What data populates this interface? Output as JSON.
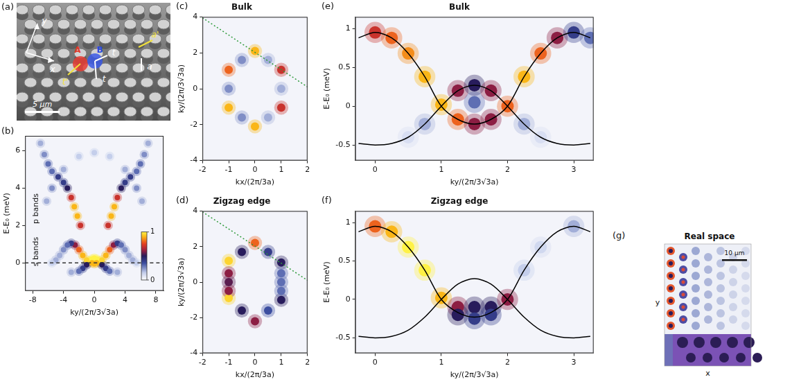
{
  "chart_data": [
    {
      "panel": "(b)",
      "type": "heatmap",
      "xlabel": "ky/(2π/3√3a)",
      "ylabel": "E-E₀ (meV)",
      "xlim": [
        -9,
        9
      ],
      "ylim": [
        -1.5,
        6.8
      ],
      "xticks": [
        -8,
        -4,
        0,
        4,
        8
      ],
      "yticks": [
        0,
        2,
        4,
        6
      ],
      "grid": false,
      "points": {
        "x": [
          -0.6,
          -0.3,
          0,
          0.3,
          0.6,
          -0.3,
          0,
          0.3,
          -1,
          1,
          -1.5,
          1.5,
          -2,
          2,
          -2.5,
          2.5,
          -3,
          3,
          -3.5,
          3.5,
          -4,
          4,
          -4.5,
          4.5,
          -5,
          5,
          -5.5,
          5.5,
          -1,
          1,
          -1.5,
          1.5,
          -2,
          2,
          -3,
          3,
          -1.8,
          1.8,
          -2.2,
          2.2,
          -2.6,
          2.6,
          -3,
          3,
          -3.5,
          3.5,
          -4,
          4,
          -4.7,
          4.7,
          -5.5,
          5.5,
          -6,
          6,
          -6.5,
          6.5,
          -7,
          7,
          -5.5,
          5.5,
          -6.2,
          6.2,
          -4,
          4,
          -2,
          2,
          0
        ],
        "y": [
          0.1,
          0.2,
          0.25,
          0.2,
          0.1,
          0,
          -0.05,
          0,
          0.15,
          0.15,
          0.4,
          0.4,
          0.7,
          0.7,
          0.95,
          0.95,
          1.05,
          1.05,
          0.95,
          0.95,
          0.7,
          0.7,
          0.4,
          0.4,
          0.15,
          0.15,
          0,
          0,
          -0.1,
          -0.1,
          -0.3,
          -0.3,
          -0.45,
          -0.45,
          -0.5,
          -0.5,
          2,
          2,
          2.5,
          2.5,
          3,
          3,
          3.5,
          3.5,
          4,
          4,
          4.3,
          4.3,
          4.6,
          4.6,
          4.9,
          4.9,
          5.3,
          5.3,
          5.8,
          5.8,
          6.4,
          6.4,
          4,
          4,
          3.3,
          3.3,
          5,
          5,
          5.7,
          5.7,
          5.9
        ],
        "intensity": [
          1,
          1,
          1,
          1,
          1,
          0.9,
          0.9,
          0.9,
          0.95,
          0.95,
          0.9,
          0.9,
          0.8,
          0.8,
          0.6,
          0.6,
          0.4,
          0.4,
          0.3,
          0.3,
          0.25,
          0.25,
          0.2,
          0.2,
          0.2,
          0.2,
          0.15,
          0.15,
          0.5,
          0.5,
          0.4,
          0.4,
          0.3,
          0.3,
          0.2,
          0.2,
          0.7,
          0.7,
          0.9,
          0.9,
          0.9,
          0.9,
          0.7,
          0.7,
          0.5,
          0.5,
          0.4,
          0.4,
          0.4,
          0.4,
          0.3,
          0.3,
          0.3,
          0.3,
          0.25,
          0.25,
          0.2,
          0.2,
          0.25,
          0.25,
          0.2,
          0.2,
          0.2,
          0.2,
          0.15,
          0.15,
          0.15
        ]
      },
      "colorbar": {
        "range": [
          0,
          1
        ],
        "ticks": [
          0,
          1
        ]
      },
      "annotations": [
        {
          "text": "p bands",
          "x": -7.6,
          "y": 2.9
        },
        {
          "text": "s bands",
          "x": -7.6,
          "y": 0.6
        }
      ],
      "series": [
        {
          "color": "#333333",
          "line_style": "dashed",
          "x": [
            -9,
            9
          ],
          "y": [
            0,
            0
          ]
        }
      ]
    },
    {
      "panel": "(c)",
      "type": "heatmap",
      "title": "Bulk",
      "xlabel": "kx/(2π/3a)",
      "ylabel": "ky/(2π/3√3a)",
      "xlim": [
        -2,
        2
      ],
      "ylim": [
        -4,
        4
      ],
      "xticks": [
        -2,
        -1,
        0,
        1,
        2
      ],
      "yticks": [
        -4,
        -2,
        0,
        2,
        4
      ],
      "grid": false,
      "points": {
        "x": [
          0,
          0,
          -1,
          1,
          -1,
          1,
          -0.5,
          0.5,
          -0.5,
          0.5,
          -1,
          1
        ],
        "y": [
          2.1,
          -2.1,
          1.05,
          1.05,
          -1.05,
          -1.05,
          1.6,
          1.6,
          -1.6,
          -1.6,
          0,
          0
        ],
        "intensity": [
          0.9,
          0.9,
          0.8,
          0.7,
          0.9,
          0.7,
          0.25,
          0.2,
          0.25,
          0.2,
          0.25,
          0.2
        ]
      },
      "series": [
        {
          "color": "#2e9a3a",
          "line_style": "dotted",
          "x": [
            -2,
            2
          ],
          "y": [
            3.95,
            0.1
          ]
        }
      ]
    },
    {
      "panel": "(d)",
      "type": "heatmap",
      "title": "Zigzag edge",
      "xlabel": "kx/(2π/3a)",
      "ylabel": "ky/(2π/3√3a)",
      "xlim": [
        -2,
        2
      ],
      "ylim": [
        -4,
        4
      ],
      "xticks": [
        -2,
        -1,
        0,
        1,
        2
      ],
      "yticks": [
        -4,
        -2,
        0,
        2,
        4
      ],
      "grid": false,
      "points": {
        "x": [
          -1,
          -1,
          0,
          0,
          1,
          1,
          -1,
          -1,
          -1,
          -0.5,
          0.5,
          -0.5,
          0.5,
          1,
          1,
          1
        ],
        "y": [
          1.2,
          -0.9,
          2.2,
          -2.2,
          1.1,
          -1,
          0.5,
          0,
          -0.5,
          1.7,
          1.7,
          -1.6,
          -1.6,
          0,
          0.5,
          -0.5
        ],
        "intensity": [
          0.95,
          0.95,
          0.8,
          0.6,
          0.5,
          0.5,
          0.6,
          0.55,
          0.6,
          0.5,
          0.4,
          0.5,
          0.35,
          0.3,
          0.3,
          0.3
        ]
      },
      "series": [
        {
          "color": "#2e9a3a",
          "line_style": "dotted",
          "x": [
            -2,
            2
          ],
          "y": [
            3.95,
            0.1
          ]
        }
      ]
    },
    {
      "panel": "(e)",
      "type": "heatmap",
      "title": "Bulk",
      "xlabel": "ky/(2π/3√3a)",
      "ylabel": "E-E₀ (meV)",
      "xlim": [
        -0.3,
        3.3
      ],
      "ylim": [
        -0.7,
        1.15
      ],
      "xticks": [
        0,
        1,
        2,
        3
      ],
      "yticks": [
        -0.5,
        0,
        0.5,
        1
      ],
      "grid": false,
      "points": {
        "x": [
          0,
          0.25,
          0.5,
          0.75,
          1,
          1.25,
          1.5,
          1.75,
          2,
          2.25,
          2.5,
          2.75,
          3,
          3.25,
          1.25,
          1.5,
          1.75,
          0.75,
          2.25,
          0.5,
          2.5,
          1.5
        ],
        "y": [
          0.95,
          0.88,
          0.68,
          0.38,
          0.02,
          -0.17,
          -0.23,
          -0.17,
          0,
          0.38,
          0.68,
          0.88,
          0.95,
          0.88,
          0.2,
          0.27,
          0.2,
          -0.23,
          -0.23,
          -0.4,
          -0.4,
          0.05
        ],
        "intensity": [
          0.7,
          0.8,
          0.85,
          0.9,
          0.9,
          0.8,
          0.6,
          0.6,
          0.8,
          0.9,
          0.8,
          0.6,
          0.4,
          0.3,
          0.6,
          0.5,
          0.6,
          0.2,
          0.2,
          0.1,
          0.1,
          0.3
        ]
      },
      "series": [
        {
          "color": "#000000",
          "line_style": "solid",
          "x": [
            -0.25,
            0,
            0.25,
            0.5,
            0.75,
            1,
            1.25,
            1.5,
            1.75,
            2,
            2.25,
            2.5,
            2.75,
            3,
            3.25
          ],
          "y": [
            0.88,
            0.95,
            0.88,
            0.68,
            0.38,
            0,
            -0.17,
            -0.23,
            -0.17,
            0,
            0.38,
            0.68,
            0.88,
            0.95,
            0.88
          ]
        },
        {
          "color": "#000000",
          "line_style": "solid",
          "x": [
            -0.25,
            0,
            0.25,
            0.5,
            0.75,
            1,
            1.25,
            1.5,
            1.75,
            2,
            2.25,
            2.5,
            2.75,
            3,
            3.25
          ],
          "y": [
            -0.48,
            -0.5,
            -0.48,
            -0.4,
            -0.23,
            0,
            0.2,
            0.27,
            0.2,
            0,
            -0.23,
            -0.4,
            -0.48,
            -0.5,
            -0.48
          ]
        }
      ]
    },
    {
      "panel": "(f)",
      "type": "heatmap",
      "title": "Zigzag edge",
      "xlabel": "ky/(2π/3√3a)",
      "ylabel": "E-E₀ (meV)",
      "xlim": [
        -0.3,
        3.3
      ],
      "ylim": [
        -0.7,
        1.15
      ],
      "xticks": [
        0,
        1,
        2,
        3
      ],
      "yticks": [
        -0.5,
        0,
        0.5,
        1
      ],
      "grid": false,
      "points": {
        "x": [
          0,
          0.25,
          0.5,
          0.75,
          1,
          1.25,
          1.5,
          1.75,
          2,
          1.25,
          1.5,
          1.75,
          2.25,
          2.5,
          3
        ],
        "y": [
          0.95,
          0.88,
          0.68,
          0.38,
          0.02,
          -0.1,
          -0.1,
          -0.1,
          0,
          -0.2,
          -0.25,
          -0.2,
          0.38,
          0.68,
          0.95
        ],
        "intensity": [
          0.8,
          0.9,
          1,
          1,
          0.9,
          0.6,
          0.5,
          0.5,
          0.6,
          0.5,
          0.4,
          0.4,
          0.15,
          0.12,
          0.2
        ]
      },
      "series": [
        {
          "color": "#000000",
          "line_style": "solid",
          "x": [
            -0.25,
            0,
            0.25,
            0.5,
            0.75,
            1,
            1.25,
            1.5,
            1.75,
            2,
            2.25,
            2.5,
            2.75,
            3,
            3.25
          ],
          "y": [
            0.88,
            0.95,
            0.88,
            0.68,
            0.38,
            0,
            -0.17,
            -0.23,
            -0.17,
            0,
            0.38,
            0.68,
            0.88,
            0.95,
            0.88
          ]
        },
        {
          "color": "#000000",
          "line_style": "solid",
          "x": [
            -0.25,
            0,
            0.25,
            0.5,
            0.75,
            1,
            1.25,
            1.5,
            1.75,
            2,
            2.25,
            2.5,
            2.75,
            3,
            3.25
          ],
          "y": [
            -0.48,
            -0.5,
            -0.48,
            -0.4,
            -0.23,
            0,
            0.2,
            0.27,
            0.2,
            0,
            -0.23,
            -0.4,
            -0.48,
            -0.5,
            -0.48
          ]
        }
      ]
    }
  ],
  "images": [
    {
      "panel": "(a)",
      "site_labels": [
        "A",
        "B"
      ],
      "hopping_labels": [
        "t'",
        "t",
        "t"
      ],
      "lattice_labels": [
        "a'",
        "a"
      ],
      "axis_labels": [
        "x",
        "y"
      ],
      "scale_bar": "5 μm"
    },
    {
      "panel": "(g)",
      "title": "Real space",
      "axis_labels": [
        "x",
        "y"
      ],
      "scale_bar": "10 μm"
    }
  ]
}
